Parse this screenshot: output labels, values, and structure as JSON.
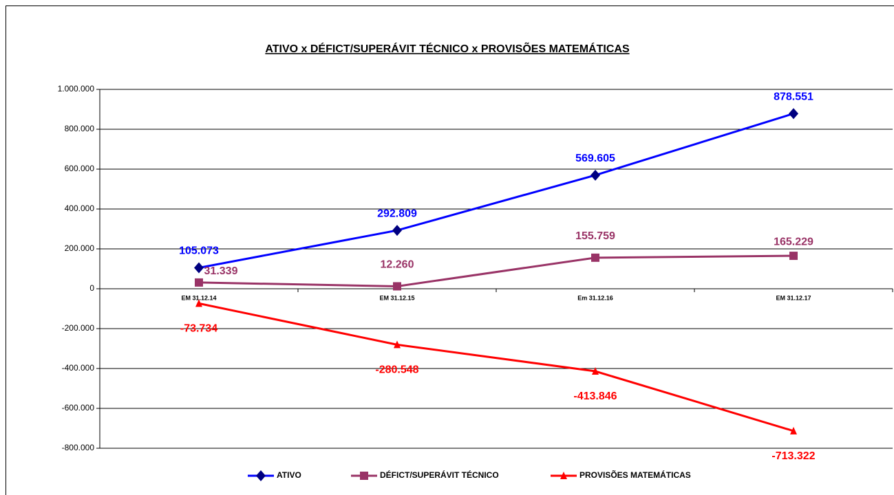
{
  "chart_data": {
    "type": "line",
    "title": "ATIVO x DÉFICT/SUPERÁVIT TÉCNICO x PROVISÕES MATEMÁTICAS",
    "categories": [
      "EM 31.12.14",
      "EM 31.12.15",
      "Em 31.12.16",
      "EM 31.12.17"
    ],
    "series": [
      {
        "name": "ATIVO",
        "color": "#0000ff",
        "marker": "diamond",
        "marker_color": "#000080",
        "values": [
          105073,
          292809,
          569605,
          878551
        ],
        "value_labels": [
          "105.073",
          "292.809",
          "569.605",
          "878.551"
        ]
      },
      {
        "name": "DÉFICT/SUPERÁVIT TÉCNICO",
        "color": "#993366",
        "marker": "square",
        "marker_color": "#993366",
        "values": [
          31339,
          12260,
          155759,
          165229
        ],
        "value_labels": [
          "31.339",
          "12.260",
          "155.759",
          "165.229"
        ]
      },
      {
        "name": "PROVISÕES MATEMÁTICAS",
        "color": "#ff0000",
        "marker": "triangle",
        "marker_color": "#ff0000",
        "values": [
          -73734,
          -280548,
          -413846,
          -713322
        ],
        "value_labels": [
          "-73.734",
          "-280.548",
          "-413.846",
          "-713.322"
        ]
      }
    ],
    "ylim": [
      -800000,
      1000000
    ],
    "yticks": [
      {
        "value": -800000,
        "label": "-800.000"
      },
      {
        "value": -600000,
        "label": "-600.000"
      },
      {
        "value": -400000,
        "label": "-400.000"
      },
      {
        "value": -200000,
        "label": "-200.000"
      },
      0,
      {
        "value": 200000,
        "label": "200.000"
      },
      {
        "value": 400000,
        "label": "400.000"
      },
      {
        "value": 600000,
        "label": "600.000"
      },
      {
        "value": 800000,
        "label": "800.000"
      },
      {
        "value": 1000000,
        "label": "1.000.000"
      }
    ],
    "grid": true,
    "legend": "bottom"
  }
}
